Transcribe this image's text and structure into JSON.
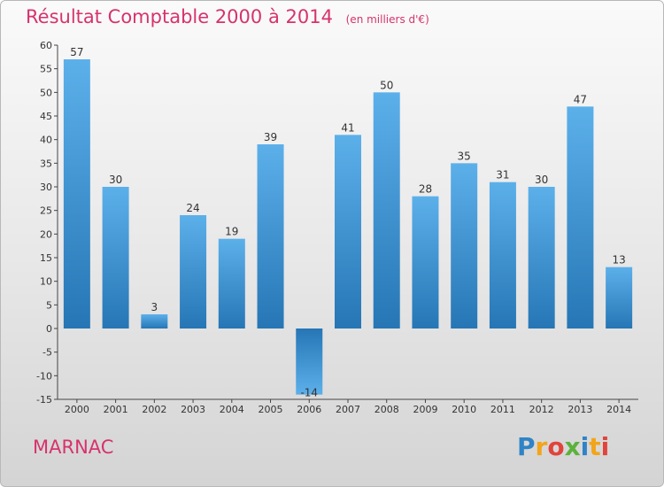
{
  "header": {
    "title": "Résultat Comptable 2000 à 2014",
    "unit": "(en milliers d'€)"
  },
  "footer": {
    "place": "MARNAC",
    "logo_letters": [
      {
        "ch": "P",
        "color": "#2f83c6"
      },
      {
        "ch": "r",
        "color": "#f2a51a"
      },
      {
        "ch": "o",
        "color": "#e0443b"
      },
      {
        "ch": "x",
        "color": "#5bb23c"
      },
      {
        "ch": "i",
        "color": "#2f83c6"
      },
      {
        "ch": "t",
        "color": "#f2a51a"
      },
      {
        "ch": "i",
        "color": "#e0443b"
      }
    ]
  },
  "colors": {
    "title": "#d6336c",
    "bar_light": "#5cb0ea",
    "bar_dark": "#2676b5"
  },
  "chart_data": {
    "type": "bar",
    "title": "Résultat Comptable 2000 à 2014",
    "subtitle": "(en milliers d'€)",
    "xlabel": "",
    "ylabel": "",
    "categories": [
      "2000",
      "2001",
      "2002",
      "2003",
      "2004",
      "2005",
      "2006",
      "2007",
      "2008",
      "2009",
      "2010",
      "2011",
      "2012",
      "2013",
      "2014"
    ],
    "values": [
      57,
      30,
      3,
      24,
      19,
      39,
      -14,
      41,
      50,
      28,
      35,
      31,
      30,
      47,
      13
    ],
    "ylim": [
      -15,
      60
    ],
    "yticks": [
      60,
      55,
      50,
      45,
      40,
      35,
      30,
      25,
      20,
      15,
      10,
      5,
      0,
      -5,
      -10,
      -15
    ],
    "grid": false,
    "legend": "none"
  }
}
